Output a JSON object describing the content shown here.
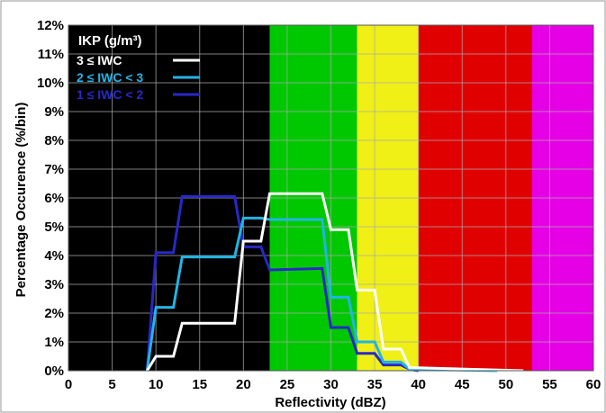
{
  "chart_data": {
    "type": "line",
    "xlabel": "Reflectivity (dBZ)",
    "ylabel": "Percentage Occurence (%/bin)",
    "xlim": [
      0,
      60
    ],
    "ylim": [
      0,
      12
    ],
    "x_ticks": [
      "0",
      "5",
      "10",
      "15",
      "20",
      "25",
      "30",
      "35",
      "40",
      "45",
      "50",
      "55",
      "60"
    ],
    "y_ticks": [
      "0%",
      "1%",
      "2%",
      "3%",
      "4%",
      "5%",
      "6%",
      "7%",
      "8%",
      "9%",
      "10%",
      "11%",
      "12%"
    ],
    "grid": true,
    "background_bands": [
      {
        "x0": 0,
        "x1": 23,
        "color": "#000000"
      },
      {
        "x0": 23,
        "x1": 33,
        "color": "#00c800"
      },
      {
        "x0": 33,
        "x1": 40,
        "color": "#f0f016"
      },
      {
        "x0": 40,
        "x1": 53,
        "color": "#e10000"
      },
      {
        "x0": 53,
        "x1": 60,
        "color": "#e600e6"
      }
    ],
    "legend": {
      "title": "IKP (g/m³)",
      "placement": "top-left"
    },
    "series": [
      {
        "name": "3 ≤ IWC",
        "color": "#ffffff",
        "x": [
          9,
          10,
          12,
          13,
          19,
          20,
          22,
          23,
          29,
          30,
          32,
          33,
          35,
          36,
          38,
          39,
          40,
          52
        ],
        "y": [
          0,
          0.5,
          0.5,
          1.65,
          1.65,
          4.5,
          4.5,
          6.15,
          6.15,
          4.9,
          4.9,
          2.8,
          2.8,
          0.75,
          0.75,
          0.1,
          0.1,
          0
        ]
      },
      {
        "name": "2 ≤ IWC < 3",
        "color": "#22b4e6",
        "x": [
          9,
          10,
          12,
          13,
          19,
          20,
          22,
          23,
          29,
          30,
          32,
          33,
          35,
          36,
          38,
          39,
          40,
          49
        ],
        "y": [
          0,
          2.2,
          2.2,
          3.95,
          3.95,
          5.3,
          5.3,
          5.25,
          5.25,
          2.55,
          2.55,
          1.0,
          1.0,
          0.3,
          0.3,
          0.05,
          0.05,
          0
        ]
      },
      {
        "name": "1 ≤ IWC < 2",
        "color": "#2828c8",
        "x": [
          9,
          10,
          12,
          13,
          19,
          20,
          22,
          23,
          29,
          30,
          32,
          33,
          35,
          36,
          38,
          39,
          40
        ],
        "y": [
          0,
          4.1,
          4.1,
          6.05,
          6.05,
          4.3,
          4.3,
          3.5,
          3.55,
          1.5,
          1.5,
          0.6,
          0.6,
          0.2,
          0.2,
          0.05,
          0
        ]
      }
    ]
  }
}
